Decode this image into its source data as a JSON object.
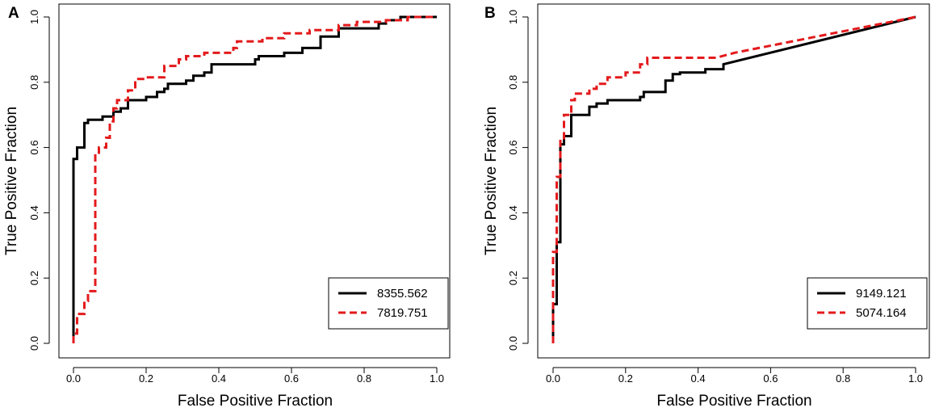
{
  "chart_data": [
    {
      "type": "line",
      "panel_label": "A",
      "xlabel": "False Positive Fraction",
      "ylabel": "True Positive Fraction",
      "xlim": [
        0,
        1
      ],
      "ylim": [
        0,
        1
      ],
      "xticks": [
        "0.0",
        "0.2",
        "0.4",
        "0.6",
        "0.8",
        "1.0"
      ],
      "yticks": [
        "0.0",
        "0.2",
        "0.4",
        "0.6",
        "0.8",
        "1.0"
      ],
      "legend_position": "bottom-right",
      "series": [
        {
          "name": "8355.562",
          "color": "#000000",
          "style": "solid",
          "points": [
            [
              0,
              0
            ],
            [
              0,
              0.565
            ],
            [
              0.01,
              0.565
            ],
            [
              0.01,
              0.6
            ],
            [
              0.03,
              0.6
            ],
            [
              0.03,
              0.675
            ],
            [
              0.04,
              0.675
            ],
            [
              0.04,
              0.685
            ],
            [
              0.08,
              0.685
            ],
            [
              0.08,
              0.695
            ],
            [
              0.11,
              0.695
            ],
            [
              0.11,
              0.71
            ],
            [
              0.13,
              0.71
            ],
            [
              0.13,
              0.72
            ],
            [
              0.15,
              0.72
            ],
            [
              0.15,
              0.745
            ],
            [
              0.2,
              0.745
            ],
            [
              0.2,
              0.755
            ],
            [
              0.23,
              0.755
            ],
            [
              0.23,
              0.77
            ],
            [
              0.25,
              0.77
            ],
            [
              0.25,
              0.78
            ],
            [
              0.26,
              0.78
            ],
            [
              0.26,
              0.795
            ],
            [
              0.31,
              0.795
            ],
            [
              0.31,
              0.805
            ],
            [
              0.33,
              0.805
            ],
            [
              0.33,
              0.82
            ],
            [
              0.36,
              0.82
            ],
            [
              0.36,
              0.83
            ],
            [
              0.38,
              0.83
            ],
            [
              0.38,
              0.855
            ],
            [
              0.5,
              0.855
            ],
            [
              0.5,
              0.87
            ],
            [
              0.51,
              0.87
            ],
            [
              0.51,
              0.88
            ],
            [
              0.58,
              0.88
            ],
            [
              0.58,
              0.89
            ],
            [
              0.63,
              0.89
            ],
            [
              0.63,
              0.905
            ],
            [
              0.68,
              0.905
            ],
            [
              0.68,
              0.94
            ],
            [
              0.73,
              0.94
            ],
            [
              0.73,
              0.965
            ],
            [
              0.84,
              0.965
            ],
            [
              0.84,
              0.98
            ],
            [
              0.86,
              0.98
            ],
            [
              0.86,
              0.99
            ],
            [
              0.9,
              0.99
            ],
            [
              0.9,
              1.0
            ],
            [
              1.0,
              1.0
            ]
          ]
        },
        {
          "name": "7819.751",
          "color": "#e31a1c",
          "style": "dashed",
          "points": [
            [
              0,
              0
            ],
            [
              0,
              0.03
            ],
            [
              0.01,
              0.03
            ],
            [
              0.01,
              0.09
            ],
            [
              0.03,
              0.09
            ],
            [
              0.03,
              0.13
            ],
            [
              0.04,
              0.13
            ],
            [
              0.04,
              0.16
            ],
            [
              0.06,
              0.16
            ],
            [
              0.06,
              0.58
            ],
            [
              0.07,
              0.58
            ],
            [
              0.07,
              0.6
            ],
            [
              0.09,
              0.6
            ],
            [
              0.09,
              0.63
            ],
            [
              0.1,
              0.63
            ],
            [
              0.1,
              0.68
            ],
            [
              0.11,
              0.68
            ],
            [
              0.11,
              0.72
            ],
            [
              0.12,
              0.72
            ],
            [
              0.12,
              0.745
            ],
            [
              0.15,
              0.745
            ],
            [
              0.15,
              0.775
            ],
            [
              0.17,
              0.775
            ],
            [
              0.17,
              0.81
            ],
            [
              0.2,
              0.81
            ],
            [
              0.2,
              0.815
            ],
            [
              0.25,
              0.815
            ],
            [
              0.25,
              0.85
            ],
            [
              0.29,
              0.85
            ],
            [
              0.29,
              0.87
            ],
            [
              0.31,
              0.87
            ],
            [
              0.31,
              0.88
            ],
            [
              0.36,
              0.88
            ],
            [
              0.36,
              0.89
            ],
            [
              0.44,
              0.89
            ],
            [
              0.44,
              0.905
            ],
            [
              0.45,
              0.905
            ],
            [
              0.45,
              0.925
            ],
            [
              0.52,
              0.925
            ],
            [
              0.52,
              0.935
            ],
            [
              0.58,
              0.935
            ],
            [
              0.58,
              0.95
            ],
            [
              0.65,
              0.95
            ],
            [
              0.65,
              0.96
            ],
            [
              0.73,
              0.96
            ],
            [
              0.73,
              0.975
            ],
            [
              0.78,
              0.975
            ],
            [
              0.78,
              0.985
            ],
            [
              0.86,
              0.985
            ],
            [
              0.86,
              0.99
            ],
            [
              0.92,
              0.99
            ],
            [
              0.92,
              1.0
            ],
            [
              1.0,
              1.0
            ]
          ]
        }
      ]
    },
    {
      "type": "line",
      "panel_label": "B",
      "xlabel": "False Positive Fraction",
      "ylabel": "True Positive Fraction",
      "xlim": [
        0,
        1
      ],
      "ylim": [
        0,
        1
      ],
      "xticks": [
        "0.0",
        "0.2",
        "0.4",
        "0.6",
        "0.8",
        "1.0"
      ],
      "yticks": [
        "0.0",
        "0.2",
        "0.4",
        "0.6",
        "0.8",
        "1.0"
      ],
      "legend_position": "bottom-right",
      "series": [
        {
          "name": "9149.121",
          "color": "#000000",
          "style": "solid",
          "points": [
            [
              0,
              0
            ],
            [
              0,
              0.12
            ],
            [
              0.01,
              0.12
            ],
            [
              0.01,
              0.31
            ],
            [
              0.02,
              0.31
            ],
            [
              0.02,
              0.61
            ],
            [
              0.03,
              0.61
            ],
            [
              0.03,
              0.635
            ],
            [
              0.05,
              0.635
            ],
            [
              0.05,
              0.7
            ],
            [
              0.1,
              0.7
            ],
            [
              0.1,
              0.725
            ],
            [
              0.12,
              0.725
            ],
            [
              0.12,
              0.735
            ],
            [
              0.15,
              0.735
            ],
            [
              0.15,
              0.745
            ],
            [
              0.24,
              0.745
            ],
            [
              0.24,
              0.755
            ],
            [
              0.25,
              0.755
            ],
            [
              0.25,
              0.77
            ],
            [
              0.31,
              0.77
            ],
            [
              0.31,
              0.805
            ],
            [
              0.33,
              0.805
            ],
            [
              0.33,
              0.825
            ],
            [
              0.35,
              0.825
            ],
            [
              0.35,
              0.83
            ],
            [
              0.42,
              0.83
            ],
            [
              0.42,
              0.84
            ],
            [
              0.47,
              0.84
            ],
            [
              0.47,
              0.855
            ],
            [
              1.0,
              1.0
            ]
          ]
        },
        {
          "name": "5074.164",
          "color": "#e31a1c",
          "style": "dashed",
          "points": [
            [
              0,
              0
            ],
            [
              0,
              0.28
            ],
            [
              0.01,
              0.28
            ],
            [
              0.01,
              0.51
            ],
            [
              0.02,
              0.51
            ],
            [
              0.02,
              0.62
            ],
            [
              0.03,
              0.62
            ],
            [
              0.03,
              0.7
            ],
            [
              0.05,
              0.7
            ],
            [
              0.05,
              0.745
            ],
            [
              0.06,
              0.745
            ],
            [
              0.06,
              0.765
            ],
            [
              0.1,
              0.765
            ],
            [
              0.1,
              0.78
            ],
            [
              0.12,
              0.78
            ],
            [
              0.12,
              0.795
            ],
            [
              0.15,
              0.795
            ],
            [
              0.15,
              0.815
            ],
            [
              0.2,
              0.815
            ],
            [
              0.2,
              0.83
            ],
            [
              0.24,
              0.83
            ],
            [
              0.24,
              0.855
            ],
            [
              0.26,
              0.855
            ],
            [
              0.26,
              0.875
            ],
            [
              0.45,
              0.875
            ],
            [
              0.5,
              0.89
            ],
            [
              1.0,
              1.0
            ]
          ]
        }
      ]
    }
  ]
}
